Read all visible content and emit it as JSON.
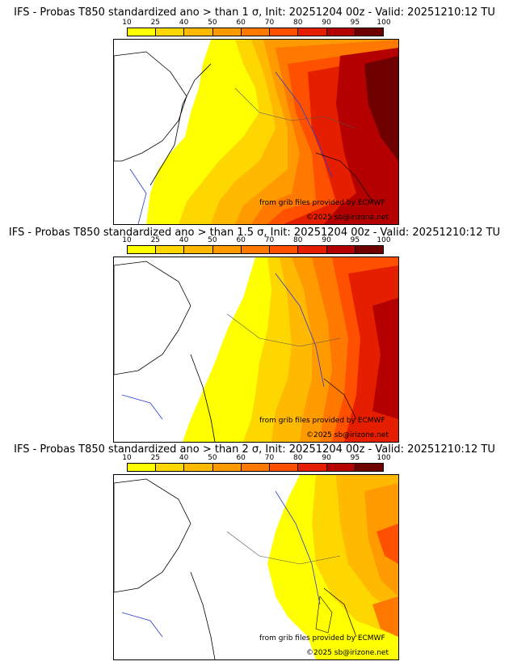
{
  "colorbar": {
    "ticks": [
      "10",
      "25",
      "40",
      "50",
      "60",
      "70",
      "80",
      "90",
      "95",
      "100"
    ],
    "colors": [
      "#ffff00",
      "#ffd700",
      "#ffb900",
      "#ff9b00",
      "#ff7800",
      "#ff5000",
      "#e61e00",
      "#b40000",
      "#6e0000"
    ]
  },
  "credits": {
    "source": "from grib files provided by ECMWF",
    "copyright": "©2025 sb@irizone.net"
  },
  "panels": [
    {
      "title": "IFS - Probas T850  standardized ano > than 1 σ, Init: 20251204 00z - Valid: 20251210:12 TU",
      "threshold": "1 σ"
    },
    {
      "title": "IFS - Probas T850  standardized ano > than 1.5 σ, Init: 20251204 00z - Valid: 20251210:12 TU",
      "threshold": "1.5 σ"
    },
    {
      "title": "IFS - Probas T850  standardized ano > than 2 σ, Init: 20251204 00z - Valid: 20251210:12 TU",
      "threshold": "2 σ"
    }
  ]
}
